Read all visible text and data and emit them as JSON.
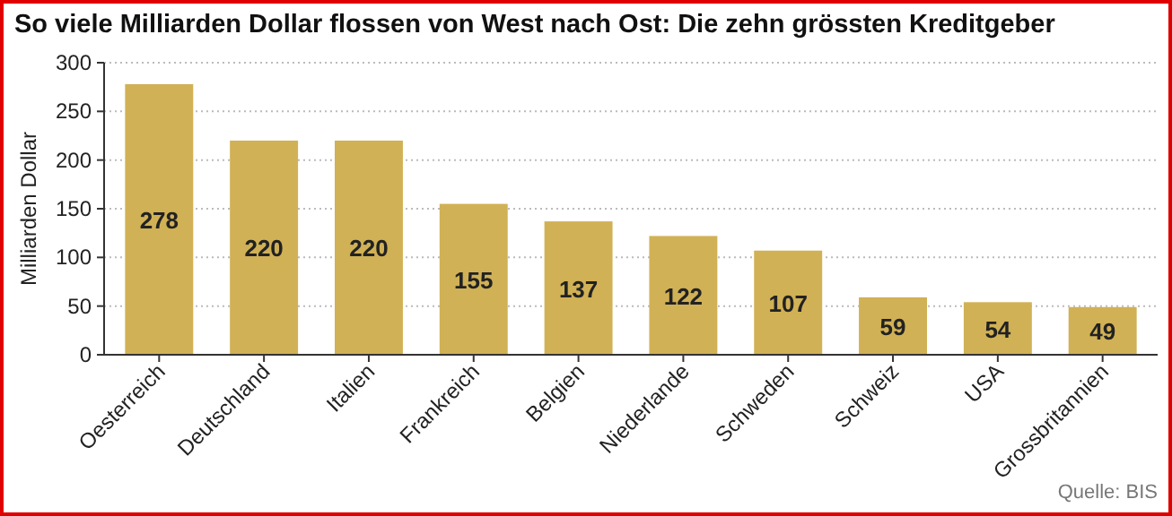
{
  "chart_data": {
    "type": "bar",
    "title": "So viele Milliarden Dollar flossen von West nach Ost: Die zehn grössten Kreditgeber",
    "ylabel": "Milliarden Dollar",
    "categories": [
      "Oesterreich",
      "Deutschland",
      "Italien",
      "Frankreich",
      "Belgien",
      "Niederlande",
      "Schweden",
      "Schweiz",
      "USA",
      "Grossbritannien"
    ],
    "values": [
      278,
      220,
      220,
      155,
      137,
      122,
      107,
      59,
      54,
      49
    ],
    "color": "#d1b155",
    "ylim": [
      0,
      300
    ],
    "yticks": [
      0,
      50,
      100,
      150,
      200,
      250,
      300
    ],
    "grid": "y",
    "data_labels": true,
    "annotations": [
      "Quelle: BIS"
    ]
  }
}
